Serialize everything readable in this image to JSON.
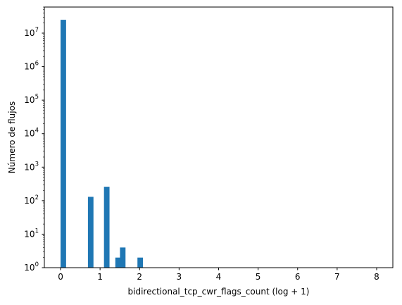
{
  "chart_data": {
    "type": "bar",
    "xlabel": "bidirectional_tcp_cwr_flags_count (log + 1)",
    "ylabel": "Número de flujos",
    "y_scale": "log",
    "xlim": [
      -0.41,
      8.41
    ],
    "ylim": [
      1,
      60000000
    ],
    "bar_width": 0.14,
    "x_ticks": [
      0,
      1,
      2,
      3,
      4,
      5,
      6,
      7,
      8
    ],
    "x_tick_labels": [
      "0",
      "1",
      "2",
      "3",
      "4",
      "5",
      "6",
      "7",
      "8"
    ],
    "y_ticks": [
      1,
      10,
      100,
      1000,
      10000,
      100000,
      1000000,
      10000000
    ],
    "y_tick_base": "10",
    "y_tick_exponents": [
      "0",
      "1",
      "2",
      "3",
      "4",
      "5",
      "6",
      "7"
    ],
    "grid": false,
    "bar_color": "#1f77b4",
    "bins": [
      {
        "x": 0.0,
        "count": 25000000
      },
      {
        "x": 0.693,
        "count": 130
      },
      {
        "x": 1.099,
        "count": 260
      },
      {
        "x": 1.386,
        "count": 2
      },
      {
        "x": 1.504,
        "count": 4
      },
      {
        "x": 1.946,
        "count": 2
      }
    ]
  }
}
